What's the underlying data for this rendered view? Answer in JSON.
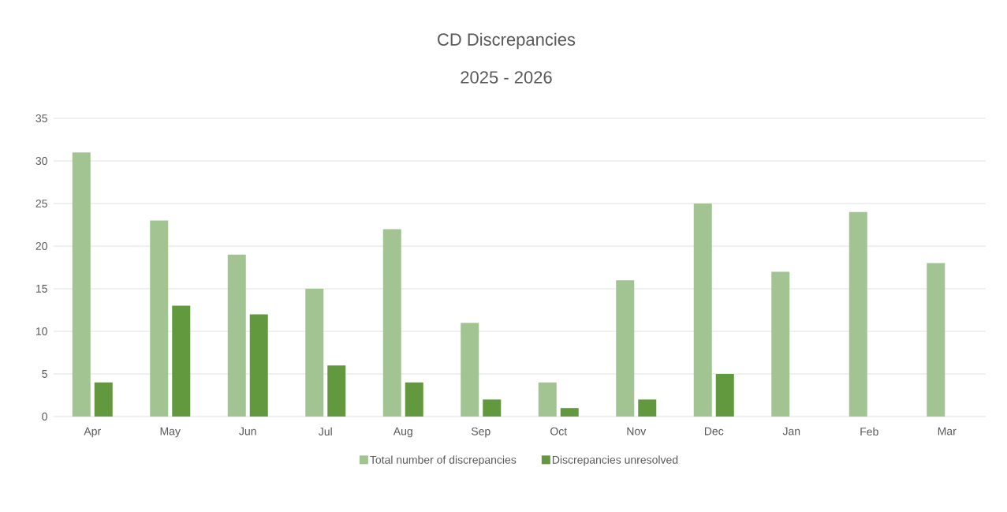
{
  "chart_data": {
    "type": "bar",
    "title": "CD Discrepancies",
    "subtitle": "2025 - 2026",
    "categories": [
      "Apr",
      "May",
      "Jun",
      "Jul",
      "Aug",
      "Sep",
      "Oct",
      "Nov",
      "Dec",
      "Jan",
      "Feb",
      "Mar"
    ],
    "series": [
      {
        "name": "Total number of discrepancies",
        "color": "#a2c493",
        "values": [
          31,
          23,
          19,
          15,
          22,
          11,
          4,
          16,
          25,
          17,
          24,
          18
        ]
      },
      {
        "name": "Discrepancies unresolved",
        "color": "#62993e",
        "values": [
          4,
          13,
          12,
          6,
          4,
          2,
          1,
          2,
          5,
          null,
          null,
          null
        ]
      }
    ],
    "ylim": [
      0,
      35
    ],
    "yticks": [
      0,
      5,
      10,
      15,
      20,
      25,
      30,
      35
    ],
    "grid": "y",
    "legend": "bottom"
  }
}
